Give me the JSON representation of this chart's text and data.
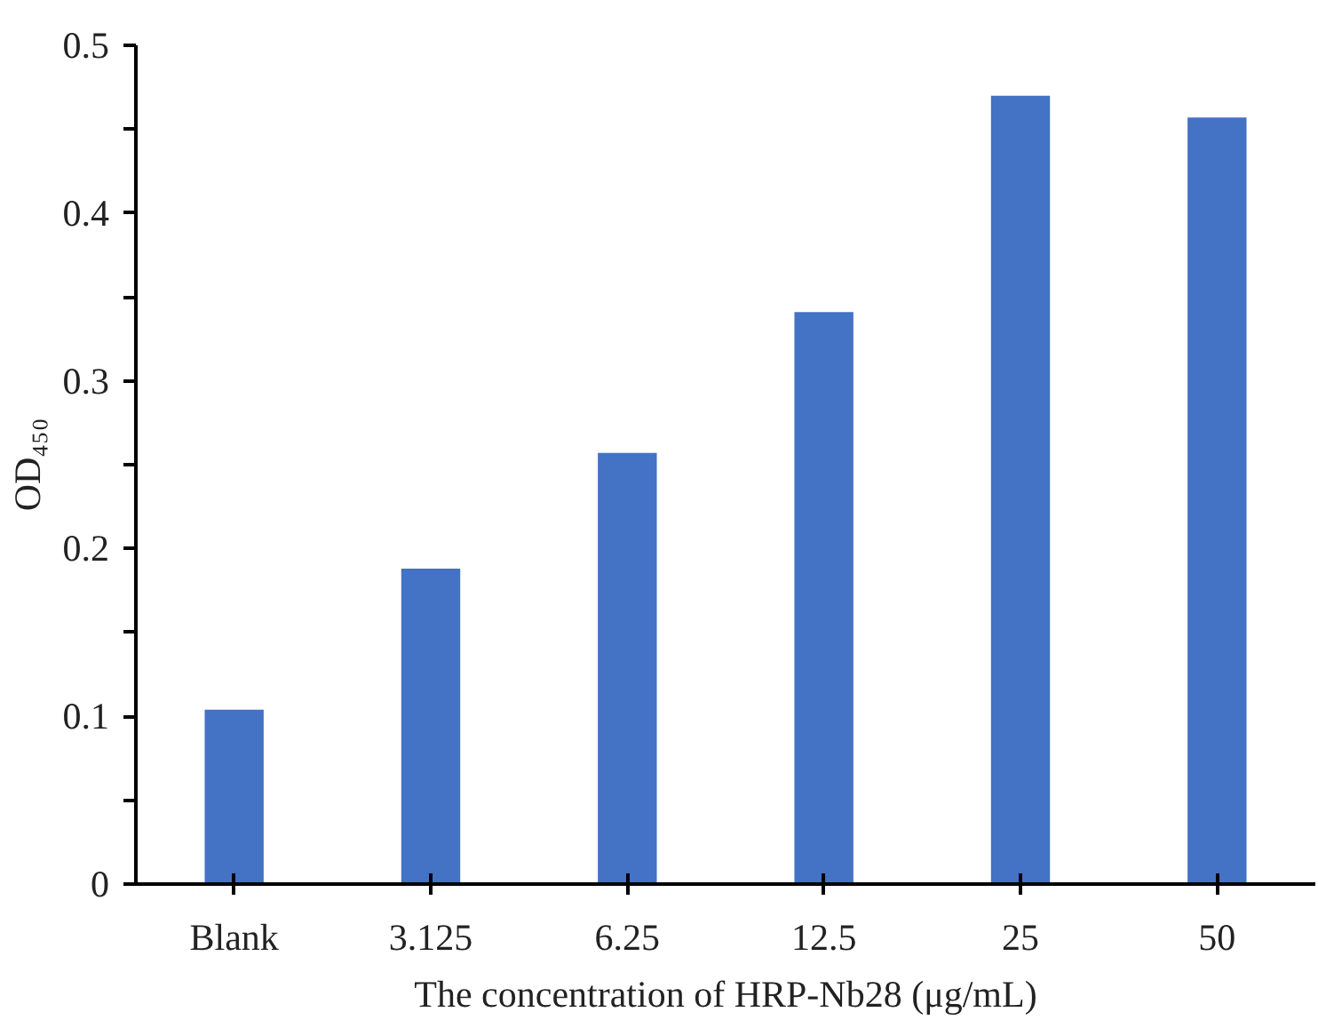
{
  "chart_data": {
    "type": "bar",
    "xlabel": "The concentration of HRP-Nb28 (μg/mL)",
    "ylabel": "OD₄₅₀",
    "categories": [
      "Blank",
      "3.125",
      "6.25",
      "12.5",
      "25",
      "50"
    ],
    "values": [
      0.104,
      0.188,
      0.257,
      0.341,
      0.47,
      0.457
    ],
    "color": "#4472c4",
    "ylim": [
      0,
      0.5
    ],
    "yticks": [
      0,
      {
        "value": 0.05,
        "label": null
      },
      0.1,
      {
        "value": 0.15,
        "label": null
      },
      0.2,
      {
        "value": 0.25,
        "label": null
      },
      0.3,
      {
        "value": 0.35,
        "label": null
      },
      0.4,
      {
        "value": 0.45,
        "label": null
      },
      0.5
    ],
    "grid": false,
    "legend": false
  }
}
